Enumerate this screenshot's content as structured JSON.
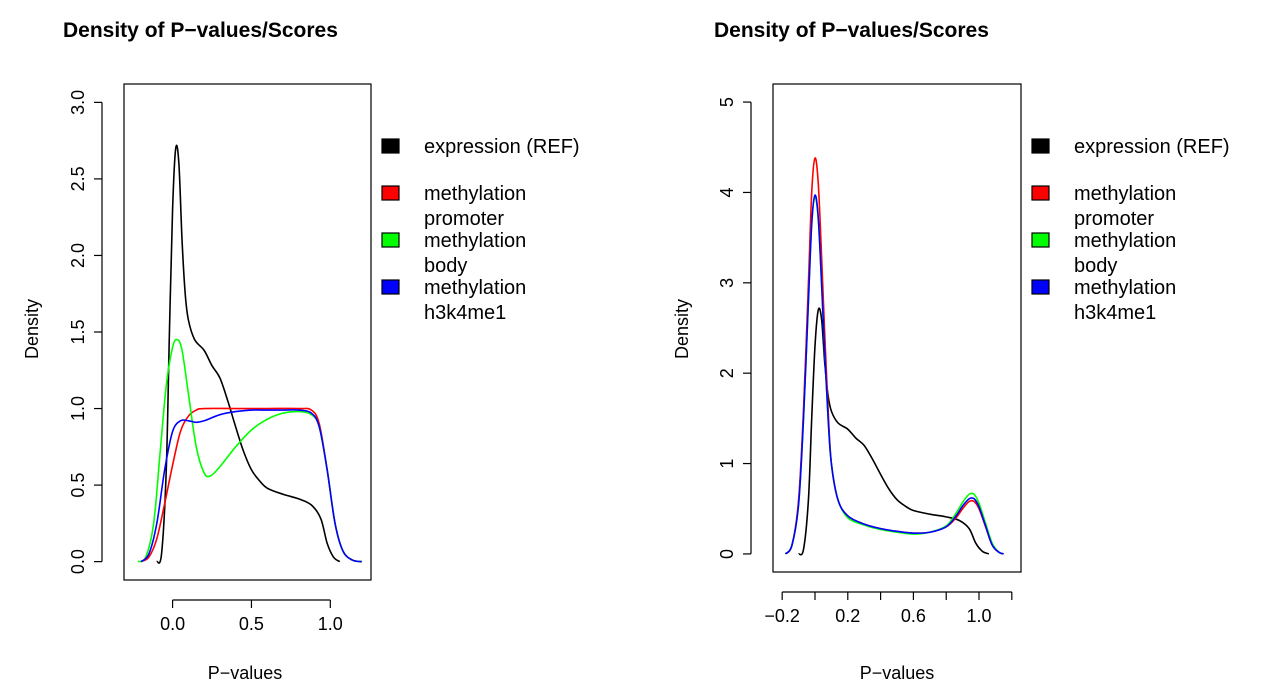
{
  "chart_data": [
    {
      "type": "line",
      "title": "Density of P−values/Scores",
      "xlabel": "P−values",
      "ylabel": "Density",
      "xlim": [
        -0.25,
        1.2
      ],
      "ylim": [
        0,
        3.0
      ],
      "x_ticks": [
        {
          "v": 0.0,
          "label": "0.0"
        },
        {
          "v": 0.5,
          "label": "0.5"
        },
        {
          "v": 1.0,
          "label": "1.0"
        }
      ],
      "y_ticks": [
        {
          "v": 0.0,
          "label": "0.0"
        },
        {
          "v": 0.5,
          "label": "0.5"
        },
        {
          "v": 1.0,
          "label": "1.0"
        },
        {
          "v": 1.5,
          "label": "1.5"
        },
        {
          "v": 2.0,
          "label": "2.0"
        },
        {
          "v": 2.5,
          "label": "2.5"
        },
        {
          "v": 3.0,
          "label": "3.0"
        }
      ],
      "grid": false,
      "legend_position": "right",
      "series": [
        {
          "name": "expression (REF)",
          "color": "#000000",
          "points": [
            [
              -0.1,
              0
            ],
            [
              -0.07,
              0.05
            ],
            [
              -0.04,
              0.6
            ],
            [
              -0.02,
              1.5
            ],
            [
              0.0,
              2.3
            ],
            [
              0.02,
              2.7
            ],
            [
              0.04,
              2.6
            ],
            [
              0.06,
              2.1
            ],
            [
              0.08,
              1.75
            ],
            [
              0.1,
              1.58
            ],
            [
              0.14,
              1.45
            ],
            [
              0.2,
              1.38
            ],
            [
              0.25,
              1.28
            ],
            [
              0.3,
              1.2
            ],
            [
              0.35,
              1.05
            ],
            [
              0.4,
              0.88
            ],
            [
              0.45,
              0.72
            ],
            [
              0.5,
              0.6
            ],
            [
              0.55,
              0.53
            ],
            [
              0.6,
              0.48
            ],
            [
              0.7,
              0.44
            ],
            [
              0.8,
              0.41
            ],
            [
              0.88,
              0.37
            ],
            [
              0.94,
              0.28
            ],
            [
              0.98,
              0.12
            ],
            [
              1.02,
              0.03
            ],
            [
              1.06,
              0
            ]
          ]
        },
        {
          "name": "methylation promoter",
          "color": "#ff0000",
          "points": [
            [
              -0.2,
              0
            ],
            [
              -0.15,
              0.03
            ],
            [
              -0.1,
              0.15
            ],
            [
              -0.05,
              0.38
            ],
            [
              0.0,
              0.63
            ],
            [
              0.05,
              0.85
            ],
            [
              0.1,
              0.95
            ],
            [
              0.15,
              0.99
            ],
            [
              0.2,
              1.0
            ],
            [
              0.4,
              1.0
            ],
            [
              0.6,
              1.0
            ],
            [
              0.8,
              1.0
            ],
            [
              0.88,
              0.99
            ],
            [
              0.93,
              0.9
            ],
            [
              0.98,
              0.6
            ],
            [
              1.03,
              0.25
            ],
            [
              1.08,
              0.07
            ],
            [
              1.14,
              0.01
            ],
            [
              1.2,
              0
            ]
          ]
        },
        {
          "name": "methylation body",
          "color": "#00ff00",
          "points": [
            [
              -0.22,
              0
            ],
            [
              -0.17,
              0.03
            ],
            [
              -0.12,
              0.25
            ],
            [
              -0.08,
              0.7
            ],
            [
              -0.04,
              1.15
            ],
            [
              0.0,
              1.4
            ],
            [
              0.03,
              1.45
            ],
            [
              0.06,
              1.38
            ],
            [
              0.1,
              1.1
            ],
            [
              0.15,
              0.75
            ],
            [
              0.2,
              0.58
            ],
            [
              0.24,
              0.56
            ],
            [
              0.3,
              0.62
            ],
            [
              0.4,
              0.75
            ],
            [
              0.5,
              0.86
            ],
            [
              0.6,
              0.93
            ],
            [
              0.7,
              0.97
            ],
            [
              0.8,
              0.98
            ],
            [
              0.88,
              0.96
            ],
            [
              0.93,
              0.88
            ],
            [
              0.98,
              0.6
            ],
            [
              1.03,
              0.25
            ],
            [
              1.08,
              0.07
            ],
            [
              1.14,
              0.01
            ],
            [
              1.2,
              0
            ]
          ]
        },
        {
          "name": "methylation h3k4me1",
          "color": "#0000ff",
          "points": [
            [
              -0.2,
              0
            ],
            [
              -0.15,
              0.05
            ],
            [
              -0.1,
              0.25
            ],
            [
              -0.05,
              0.6
            ],
            [
              0.0,
              0.85
            ],
            [
              0.05,
              0.92
            ],
            [
              0.1,
              0.92
            ],
            [
              0.15,
              0.91
            ],
            [
              0.2,
              0.92
            ],
            [
              0.3,
              0.96
            ],
            [
              0.4,
              0.98
            ],
            [
              0.5,
              0.99
            ],
            [
              0.6,
              0.99
            ],
            [
              0.7,
              0.99
            ],
            [
              0.8,
              0.99
            ],
            [
              0.88,
              0.97
            ],
            [
              0.93,
              0.88
            ],
            [
              0.98,
              0.6
            ],
            [
              1.03,
              0.25
            ],
            [
              1.08,
              0.07
            ],
            [
              1.14,
              0.01
            ],
            [
              1.2,
              0
            ]
          ]
        }
      ]
    },
    {
      "type": "line",
      "title": "Density of P−values/Scores",
      "xlabel": "P−values",
      "ylabel": "Density",
      "xlim": [
        -0.2,
        1.2
      ],
      "ylim": [
        0,
        5
      ],
      "x_ticks": [
        {
          "v": -0.2,
          "label": "−0.2"
        },
        {
          "v": 0.0,
          "label": ""
        },
        {
          "v": 0.2,
          "label": "0.2"
        },
        {
          "v": 0.4,
          "label": ""
        },
        {
          "v": 0.6,
          "label": "0.6"
        },
        {
          "v": 0.8,
          "label": ""
        },
        {
          "v": 1.0,
          "label": "1.0"
        },
        {
          "v": 1.2,
          "label": ""
        }
      ],
      "y_ticks": [
        {
          "v": 0,
          "label": "0"
        },
        {
          "v": 1,
          "label": "1"
        },
        {
          "v": 2,
          "label": "2"
        },
        {
          "v": 3,
          "label": "3"
        },
        {
          "v": 4,
          "label": "4"
        },
        {
          "v": 5,
          "label": "5"
        }
      ],
      "grid": false,
      "legend_position": "right",
      "series": [
        {
          "name": "expression (REF)",
          "color": "#000000",
          "points": [
            [
              -0.1,
              0
            ],
            [
              -0.07,
              0.05
            ],
            [
              -0.04,
              0.6
            ],
            [
              -0.02,
              1.5
            ],
            [
              0.0,
              2.3
            ],
            [
              0.02,
              2.7
            ],
            [
              0.04,
              2.6
            ],
            [
              0.06,
              2.1
            ],
            [
              0.08,
              1.75
            ],
            [
              0.1,
              1.58
            ],
            [
              0.14,
              1.45
            ],
            [
              0.2,
              1.38
            ],
            [
              0.25,
              1.28
            ],
            [
              0.3,
              1.2
            ],
            [
              0.35,
              1.05
            ],
            [
              0.4,
              0.88
            ],
            [
              0.45,
              0.72
            ],
            [
              0.5,
              0.6
            ],
            [
              0.55,
              0.53
            ],
            [
              0.6,
              0.48
            ],
            [
              0.7,
              0.44
            ],
            [
              0.8,
              0.41
            ],
            [
              0.88,
              0.37
            ],
            [
              0.94,
              0.28
            ],
            [
              0.98,
              0.12
            ],
            [
              1.02,
              0.03
            ],
            [
              1.06,
              0
            ]
          ]
        },
        {
          "name": "methylation promoter",
          "color": "#ff0000",
          "points": [
            [
              -0.18,
              0
            ],
            [
              -0.14,
              0.1
            ],
            [
              -0.1,
              0.6
            ],
            [
              -0.07,
              1.6
            ],
            [
              -0.04,
              3.0
            ],
            [
              -0.02,
              4.0
            ],
            [
              0.0,
              4.38
            ],
            [
              0.02,
              4.1
            ],
            [
              0.04,
              3.3
            ],
            [
              0.06,
              2.4
            ],
            [
              0.08,
              1.6
            ],
            [
              0.1,
              1.0
            ],
            [
              0.14,
              0.6
            ],
            [
              0.2,
              0.42
            ],
            [
              0.3,
              0.33
            ],
            [
              0.4,
              0.28
            ],
            [
              0.5,
              0.25
            ],
            [
              0.6,
              0.23
            ],
            [
              0.7,
              0.24
            ],
            [
              0.8,
              0.3
            ],
            [
              0.86,
              0.4
            ],
            [
              0.9,
              0.5
            ],
            [
              0.94,
              0.58
            ],
            [
              0.97,
              0.58
            ],
            [
              1.0,
              0.5
            ],
            [
              1.04,
              0.3
            ],
            [
              1.08,
              0.1
            ],
            [
              1.12,
              0.02
            ],
            [
              1.15,
              0
            ]
          ]
        },
        {
          "name": "methylation body",
          "color": "#00ff00",
          "points": [
            [
              -0.18,
              0
            ],
            [
              -0.14,
              0.1
            ],
            [
              -0.1,
              0.55
            ],
            [
              -0.07,
              1.5
            ],
            [
              -0.04,
              2.8
            ],
            [
              -0.02,
              3.65
            ],
            [
              0.0,
              3.95
            ],
            [
              0.02,
              3.7
            ],
            [
              0.04,
              3.0
            ],
            [
              0.06,
              2.2
            ],
            [
              0.08,
              1.5
            ],
            [
              0.1,
              1.0
            ],
            [
              0.14,
              0.6
            ],
            [
              0.2,
              0.4
            ],
            [
              0.3,
              0.32
            ],
            [
              0.4,
              0.27
            ],
            [
              0.5,
              0.24
            ],
            [
              0.6,
              0.22
            ],
            [
              0.7,
              0.24
            ],
            [
              0.8,
              0.31
            ],
            [
              0.86,
              0.45
            ],
            [
              0.9,
              0.57
            ],
            [
              0.94,
              0.66
            ],
            [
              0.97,
              0.66
            ],
            [
              1.0,
              0.56
            ],
            [
              1.04,
              0.34
            ],
            [
              1.08,
              0.12
            ],
            [
              1.12,
              0.02
            ],
            [
              1.15,
              0
            ]
          ]
        },
        {
          "name": "methylation h3k4me1",
          "color": "#0000ff",
          "points": [
            [
              -0.18,
              0
            ],
            [
              -0.14,
              0.1
            ],
            [
              -0.1,
              0.55
            ],
            [
              -0.07,
              1.5
            ],
            [
              -0.04,
              2.8
            ],
            [
              -0.02,
              3.65
            ],
            [
              0.0,
              3.97
            ],
            [
              0.02,
              3.72
            ],
            [
              0.04,
              3.0
            ],
            [
              0.06,
              2.2
            ],
            [
              0.08,
              1.5
            ],
            [
              0.1,
              1.0
            ],
            [
              0.14,
              0.6
            ],
            [
              0.2,
              0.42
            ],
            [
              0.3,
              0.33
            ],
            [
              0.4,
              0.28
            ],
            [
              0.5,
              0.25
            ],
            [
              0.6,
              0.23
            ],
            [
              0.7,
              0.24
            ],
            [
              0.8,
              0.3
            ],
            [
              0.86,
              0.42
            ],
            [
              0.9,
              0.53
            ],
            [
              0.94,
              0.61
            ],
            [
              0.97,
              0.61
            ],
            [
              1.0,
              0.52
            ],
            [
              1.04,
              0.31
            ],
            [
              1.08,
              0.1
            ],
            [
              1.12,
              0.02
            ],
            [
              1.15,
              0
            ]
          ]
        }
      ]
    }
  ],
  "legend": {
    "entries": [
      {
        "lines": [
          "expression (REF)"
        ],
        "color": "#000000"
      },
      {
        "lines": [
          "methylation",
          "promoter"
        ],
        "color": "#ff0000"
      },
      {
        "lines": [
          "methylation",
          "body"
        ],
        "color": "#00ff00"
      },
      {
        "lines": [
          "methylation",
          "h3k4me1"
        ],
        "color": "#0000ff"
      }
    ]
  }
}
